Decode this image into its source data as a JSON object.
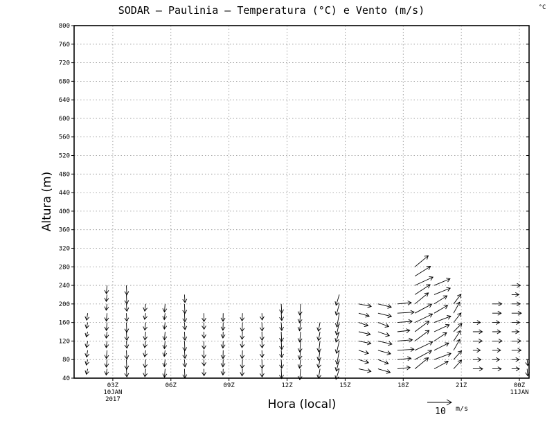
{
  "chart_data": {
    "type": "vector-field",
    "title": "SODAR – Paulinia – Temperatura (°C) e Vento (m/s)",
    "unit_label": "°C",
    "xlabel": "Hora (local)",
    "ylabel": "Altura (m)",
    "ylim": [
      40,
      800
    ],
    "yticks": [
      40,
      80,
      120,
      160,
      200,
      240,
      280,
      320,
      360,
      400,
      440,
      480,
      520,
      560,
      600,
      640,
      680,
      720,
      760,
      800
    ],
    "xlim_hours": [
      0,
      23.5
    ],
    "xticks": [
      {
        "hour": 2,
        "label": "03Z",
        "sub1": "10JAN",
        "sub2": "2017"
      },
      {
        "hour": 5,
        "label": "06Z",
        "sub1": "",
        "sub2": ""
      },
      {
        "hour": 8,
        "label": "09Z",
        "sub1": "",
        "sub2": ""
      },
      {
        "hour": 11,
        "label": "12Z",
        "sub1": "",
        "sub2": ""
      },
      {
        "hour": 14,
        "label": "15Z",
        "sub1": "",
        "sub2": ""
      },
      {
        "hour": 17,
        "label": "18Z",
        "sub1": "",
        "sub2": ""
      },
      {
        "hour": 20,
        "label": "21Z",
        "sub1": "",
        "sub2": ""
      },
      {
        "hour": 23,
        "label": "00Z",
        "sub1": "11JAN",
        "sub2": ""
      }
    ],
    "grid": true,
    "heights": [
      60,
      80,
      100,
      120,
      140,
      160,
      180,
      200,
      220,
      240,
      260,
      280
    ],
    "wind_profiles": [
      {
        "hour": 0.7,
        "top": 180,
        "u": -0.5,
        "v": -2.5
      },
      {
        "hour": 1.7,
        "top": 240,
        "u": -0.3,
        "v": -3.0
      },
      {
        "hour": 2.7,
        "top": 240,
        "u": 0.2,
        "v": -3.5
      },
      {
        "hour": 3.7,
        "top": 200,
        "u": -0.4,
        "v": -3.0
      },
      {
        "hour": 4.7,
        "top": 200,
        "u": -0.3,
        "v": -3.0
      },
      {
        "hour": 5.7,
        "top": 220,
        "u": 0.2,
        "v": -3.5
      },
      {
        "hour": 6.7,
        "top": 180,
        "u": 0.1,
        "v": -3.0
      },
      {
        "hour": 7.7,
        "top": 180,
        "u": -0.1,
        "v": -3.0
      },
      {
        "hour": 8.7,
        "top": 180,
        "u": -0.2,
        "v": -3.2
      },
      {
        "hour": 9.7,
        "top": 180,
        "u": 0.1,
        "v": -3.2
      },
      {
        "hour": 10.7,
        "top": 200,
        "u": 0.2,
        "v": -3.5
      },
      {
        "hour": 11.7,
        "top": 200,
        "u": -0.4,
        "v": -4.0
      },
      {
        "hour": 12.7,
        "top": 160,
        "u": -0.6,
        "v": -4.0
      },
      {
        "hour": 13.7,
        "top": 220,
        "u": -1.2,
        "v": -5.0
      },
      {
        "hour": 14.7,
        "top": 200,
        "u": 4.5,
        "v": -1.2
      },
      {
        "hour": 15.7,
        "top": 200,
        "u": 5.0,
        "v": -1.5
      },
      {
        "hour": 16.7,
        "top": 200,
        "u": 6.0,
        "v": 0.5
      },
      {
        "hour": 17.6,
        "top": 280,
        "u": 6.5,
        "v": 4.0
      },
      {
        "hour": 18.6,
        "top": 240,
        "u": 6.0,
        "v": 3.0
      },
      {
        "hour": 19.6,
        "top": 200,
        "u": 3.0,
        "v": 4.0
      },
      {
        "hour": 20.6,
        "top": 160,
        "u": 3.5,
        "v": 0.0
      },
      {
        "hour": 21.6,
        "top": 200,
        "u": 3.5,
        "v": 0.0
      },
      {
        "hour": 22.6,
        "top": 240,
        "u": 3.5,
        "v": 0.0
      },
      {
        "hour": 23.4,
        "top": 80,
        "u": 0.3,
        "v": -2.5
      }
    ],
    "reference_vector": {
      "value": "10",
      "unit": "m/s"
    }
  }
}
